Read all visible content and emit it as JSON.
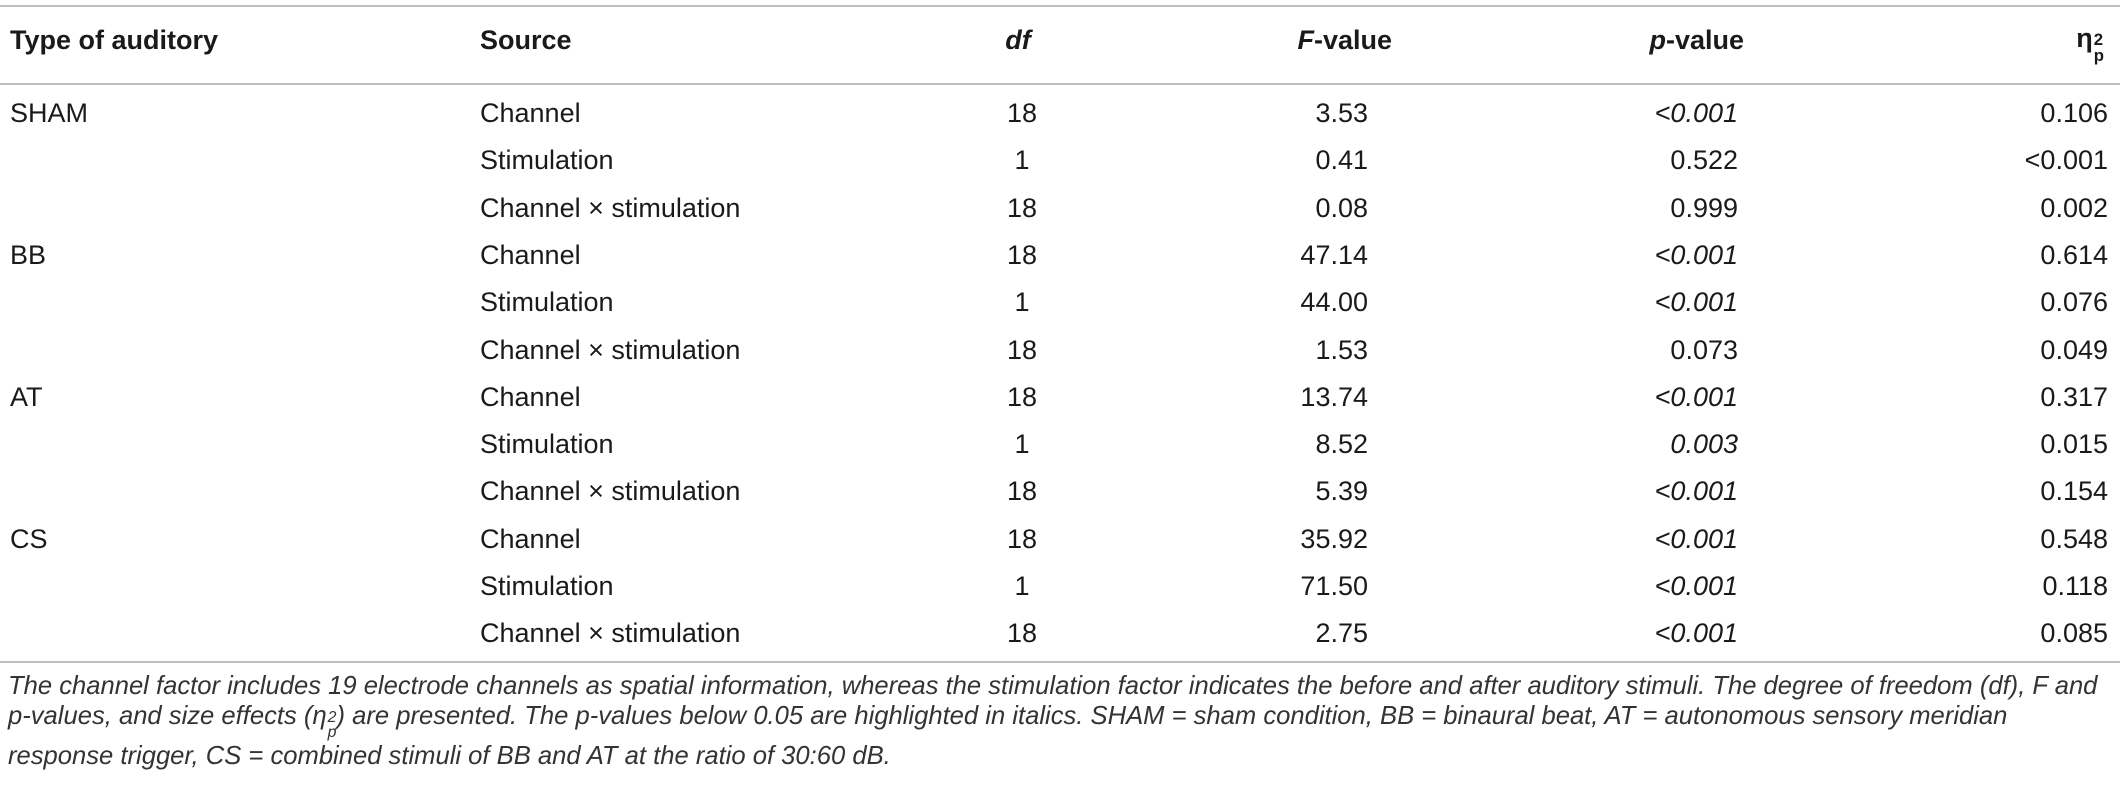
{
  "table": {
    "header": {
      "type": "Type of auditory",
      "source": "Source",
      "df": "df",
      "f": {
        "italic": "F",
        "plain": "-value"
      },
      "p": {
        "bold": "p",
        "plain": "-value"
      },
      "eta": {
        "base": "η",
        "sup": "2",
        "sub": "p"
      }
    },
    "rows": [
      {
        "group": "SHAM",
        "source": "Channel",
        "df": "18",
        "f": "3.53",
        "p": "<0.001",
        "p_italic": true,
        "eta": "0.106"
      },
      {
        "group": null,
        "source": "Stimulation",
        "df": "1",
        "f": "0.41",
        "p": "0.522",
        "p_italic": false,
        "eta": "<0.001"
      },
      {
        "group": null,
        "source": "Channel × stimulation",
        "df": "18",
        "f": "0.08",
        "p": "0.999",
        "p_italic": false,
        "eta": "0.002"
      },
      {
        "group": "BB",
        "source": "Channel",
        "df": "18",
        "f": "47.14",
        "p": "<0.001",
        "p_italic": true,
        "eta": "0.614"
      },
      {
        "group": null,
        "source": "Stimulation",
        "df": "1",
        "f": "44.00",
        "p": "<0.001",
        "p_italic": true,
        "eta": "0.076"
      },
      {
        "group": null,
        "source": "Channel × stimulation",
        "df": "18",
        "f": "1.53",
        "p": "0.073",
        "p_italic": false,
        "eta": "0.049"
      },
      {
        "group": "AT",
        "source": "Channel",
        "df": "18",
        "f": "13.74",
        "p": "<0.001",
        "p_italic": true,
        "eta": "0.317"
      },
      {
        "group": null,
        "source": "Stimulation",
        "df": "1",
        "f": "8.52",
        "p": "0.003",
        "p_italic": true,
        "eta": "0.015"
      },
      {
        "group": null,
        "source": "Channel × stimulation",
        "df": "18",
        "f": "5.39",
        "p": "<0.001",
        "p_italic": true,
        "eta": "0.154"
      },
      {
        "group": "CS",
        "source": "Channel",
        "df": "18",
        "f": "35.92",
        "p": "<0.001",
        "p_italic": true,
        "eta": "0.548"
      },
      {
        "group": null,
        "source": "Stimulation",
        "df": "1",
        "f": "71.50",
        "p": "<0.001",
        "p_italic": true,
        "eta": "0.118"
      },
      {
        "group": null,
        "source": "Channel × stimulation",
        "df": "18",
        "f": "2.75",
        "p": "<0.001",
        "p_italic": true,
        "eta": "0.085"
      }
    ]
  },
  "footnote": {
    "before": "The channel factor includes 19 electrode channels as spatial information, whereas the stimulation factor indicates the before and after auditory stimuli. The degree of freedom (df), F and p-values, and size effects (",
    "eta": {
      "base": "η",
      "sup": "2",
      "sub": "p"
    },
    "after": ") are presented. The p-values below 0.05 are highlighted in italics. SHAM = sham condition, BB = binaural beat, AT = autonomous sensory meridian response trigger, CS = combined stimuli of BB and AT at the ratio of 30:60 dB."
  }
}
